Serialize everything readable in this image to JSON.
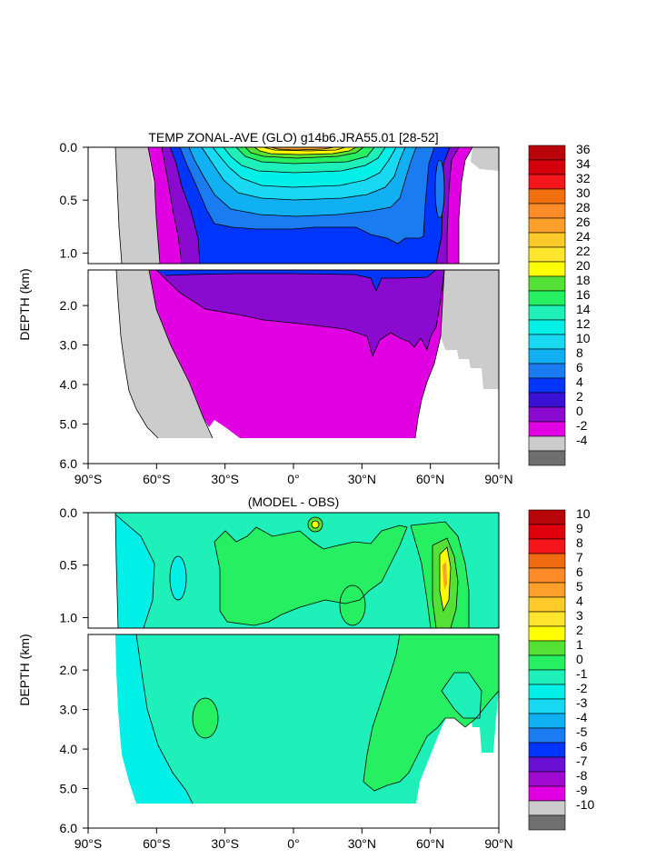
{
  "chart_data": [
    {
      "type": "contour",
      "title": "TEMP ZONAL-AVE (GLO) g14b6.JRA55.01 [28-52]",
      "ylabel": "DEPTH (km)",
      "upper_ticks": [
        "0.0",
        "0.5",
        "1.0"
      ],
      "lower_ticks": [
        "2.0",
        "3.0",
        "4.0",
        "5.0",
        "6.0"
      ],
      "xticks": [
        "90°S",
        "60°S",
        "30°S",
        "0°",
        "30°N",
        "60°N",
        "90°N"
      ],
      "xlim": [
        -90,
        90
      ],
      "ylim_upper_km": [
        0,
        1.1
      ],
      "ylim_lower_km": [
        1.1,
        6.0
      ],
      "colorbar": {
        "labels": [
          "36",
          "34",
          "32",
          "30",
          "28",
          "26",
          "24",
          "22",
          "20",
          "18",
          "16",
          "14",
          "12",
          "10",
          "8",
          "6",
          "4",
          "2",
          "0",
          "-2",
          "-4"
        ],
        "colors": [
          "#b8050a",
          "#d4000c",
          "#f4161b",
          "#f07010",
          "#fd8c28",
          "#fea02c",
          "#ffcb2a",
          "#ffe52e",
          "#ffff00",
          "#55e035",
          "#26ef62",
          "#1fefb8",
          "#00f0e8",
          "#18d8f2",
          "#10b0f2",
          "#1a7cf0",
          "#0035fc",
          "#3a10d2",
          "#8a0ad0",
          "#e000e2",
          "#cccccc",
          "#6f6f6f"
        ]
      },
      "contour_levels": [
        34,
        32,
        30,
        28,
        26,
        24,
        22,
        20,
        18,
        16,
        14,
        12,
        10,
        8,
        6,
        4,
        2,
        0
      ]
    },
    {
      "type": "contour",
      "title": "(MODEL - OBS)",
      "ylabel": "DEPTH (km)",
      "upper_ticks": [
        "0.0",
        "0.5",
        "1.0"
      ],
      "lower_ticks": [
        "2.0",
        "3.0",
        "4.0",
        "5.0",
        "6.0"
      ],
      "xticks": [
        "90°S",
        "60°S",
        "30°S",
        "0°",
        "30°N",
        "60°N",
        "90°N"
      ],
      "xlim": [
        -90,
        90
      ],
      "colorbar": {
        "labels": [
          "10",
          "9",
          "8",
          "7",
          "6",
          "5",
          "4",
          "3",
          "2",
          "1",
          "0",
          "-1",
          "-2",
          "-3",
          "-4",
          "-5",
          "-6",
          "-7",
          "-8",
          "-9",
          "-10"
        ],
        "colors": [
          "#b8050a",
          "#e0000c",
          "#f4161b",
          "#f06a10",
          "#fd8c28",
          "#fea02c",
          "#ffcb2a",
          "#ffe52e",
          "#ffff00",
          "#55e035",
          "#26ef62",
          "#1fefb8",
          "#00f0e8",
          "#18d8f2",
          "#10b0f2",
          "#1a7cf0",
          "#0035fc",
          "#6a10d2",
          "#a00ad0",
          "#e000e2",
          "#cccccc",
          "#6f6f6f"
        ]
      },
      "contour_levels": [
        3,
        2,
        1,
        0,
        -1
      ]
    }
  ]
}
